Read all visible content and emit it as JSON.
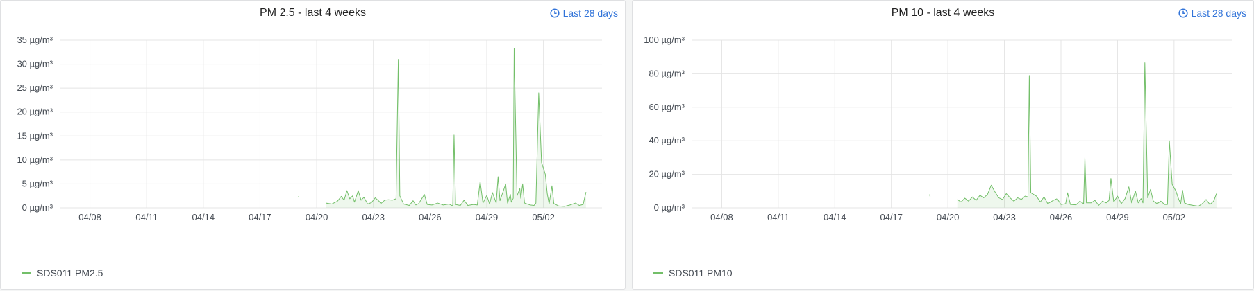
{
  "colors": {
    "series": "#73bf69",
    "fill": "rgba(115,191,105,0.12)",
    "grid": "#e4e4e4",
    "link": "#3274d9"
  },
  "panels": [
    {
      "title": "PM 2.5 - last 4 weeks",
      "time_range": "Last 28 days",
      "legend": "SDS011 PM2.5",
      "clock_icon": "clock-icon",
      "chart_data": {
        "type": "line",
        "title": "PM 2.5 - last 4 weeks",
        "unit": "µg/m³",
        "ylim": [
          0,
          35
        ],
        "yticks": [
          0,
          5,
          10,
          15,
          20,
          25,
          30,
          35
        ],
        "ytick_labels": [
          "0 µg/m³",
          "5 µg/m³",
          "10 µg/m³",
          "15 µg/m³",
          "20 µg/m³",
          "25 µg/m³",
          "30 µg/m³",
          "35 µg/m³"
        ],
        "xlim_days": [
          0,
          28.7
        ],
        "xtick_days": [
          1.6,
          4.6,
          7.6,
          10.6,
          13.6,
          16.6,
          19.6,
          22.6,
          25.6
        ],
        "xtick_labels": [
          "04/08",
          "04/11",
          "04/14",
          "04/17",
          "04/20",
          "04/23",
          "04/26",
          "04/29",
          "05/02"
        ],
        "series": [
          {
            "name": "SDS011 PM2.5",
            "segments": [
              [
                [
                  12.63,
                  2.4
                ],
                [
                  12.66,
                  2.2
                ]
              ],
              [
                [
                  14.1,
                  1.0
                ],
                [
                  14.4,
                  0.8
                ],
                [
                  14.7,
                  1.4
                ],
                [
                  14.9,
                  2.4
                ],
                [
                  15.05,
                  1.6
                ],
                [
                  15.2,
                  3.6
                ],
                [
                  15.35,
                  1.9
                ],
                [
                  15.5,
                  2.5
                ],
                [
                  15.6,
                  1.2
                ],
                [
                  15.8,
                  3.6
                ],
                [
                  15.95,
                  1.6
                ],
                [
                  16.1,
                  2.2
                ],
                [
                  16.3,
                  0.8
                ],
                [
                  16.5,
                  1.1
                ],
                [
                  16.7,
                  2.1
                ],
                [
                  16.9,
                  1.4
                ],
                [
                  17.0,
                  0.9
                ],
                [
                  17.2,
                  1.6
                ],
                [
                  17.4,
                  1.7
                ],
                [
                  17.6,
                  1.6
                ],
                [
                  17.8,
                  1.9
                ],
                [
                  17.92,
                  31.0
                ],
                [
                  18.0,
                  2.5
                ],
                [
                  18.2,
                  0.8
                ],
                [
                  18.5,
                  0.5
                ],
                [
                  18.7,
                  1.5
                ],
                [
                  18.85,
                  0.6
                ],
                [
                  19.0,
                  0.9
                ],
                [
                  19.3,
                  2.8
                ],
                [
                  19.45,
                  0.7
                ],
                [
                  19.7,
                  0.6
                ],
                [
                  20.0,
                  1.0
                ],
                [
                  20.3,
                  0.6
                ],
                [
                  20.6,
                  0.8
                ],
                [
                  20.8,
                  0.4
                ],
                [
                  20.87,
                  15.2
                ],
                [
                  20.95,
                  0.7
                ],
                [
                  21.2,
                  0.5
                ],
                [
                  21.4,
                  1.6
                ],
                [
                  21.6,
                  0.5
                ],
                [
                  21.9,
                  0.7
                ],
                [
                  22.1,
                  0.6
                ],
                [
                  22.25,
                  5.5
                ],
                [
                  22.4,
                  1.0
                ],
                [
                  22.6,
                  2.6
                ],
                [
                  22.75,
                  0.8
                ],
                [
                  22.9,
                  3.2
                ],
                [
                  23.1,
                  1.0
                ],
                [
                  23.2,
                  6.5
                ],
                [
                  23.3,
                  1.5
                ],
                [
                  23.5,
                  3.8
                ],
                [
                  23.6,
                  5.0
                ],
                [
                  23.7,
                  1.0
                ],
                [
                  23.85,
                  2.8
                ],
                [
                  23.9,
                  1.2
                ],
                [
                  24.0,
                  2.0
                ],
                [
                  24.05,
                  33.3
                ],
                [
                  24.2,
                  2.5
                ],
                [
                  24.35,
                  4.0
                ],
                [
                  24.4,
                  2.0
                ],
                [
                  24.5,
                  5.0
                ],
                [
                  24.6,
                  1.0
                ],
                [
                  24.75,
                  0.8
                ],
                [
                  24.9,
                  0.6
                ],
                [
                  25.1,
                  0.5
                ],
                [
                  25.2,
                  1.0
                ],
                [
                  25.35,
                  24.0
                ],
                [
                  25.5,
                  9.5
                ],
                [
                  25.7,
                  7.0
                ],
                [
                  25.8,
                  3.0
                ],
                [
                  25.9,
                  0.8
                ],
                [
                  26.05,
                  4.6
                ],
                [
                  26.15,
                  0.9
                ],
                [
                  26.4,
                  0.4
                ],
                [
                  26.7,
                  0.3
                ],
                [
                  27.0,
                  0.6
                ],
                [
                  27.3,
                  1.0
                ],
                [
                  27.5,
                  0.5
                ],
                [
                  27.7,
                  0.7
                ],
                [
                  27.85,
                  3.3
                ]
              ]
            ]
          }
        ]
      }
    },
    {
      "title": "PM 10 - last 4 weeks",
      "time_range": "Last 28 days",
      "legend": "SDS011 PM10",
      "clock_icon": "clock-icon",
      "chart_data": {
        "type": "line",
        "title": "PM 10 - last 4 weeks",
        "unit": "µg/m³",
        "ylim": [
          0,
          100
        ],
        "yticks": [
          0,
          20,
          40,
          60,
          80,
          100
        ],
        "ytick_labels": [
          "0 µg/m³",
          "20 µg/m³",
          "40 µg/m³",
          "60 µg/m³",
          "80 µg/m³",
          "100 µg/m³"
        ],
        "xlim_days": [
          0,
          28.7
        ],
        "xtick_days": [
          1.6,
          4.6,
          7.6,
          10.6,
          13.6,
          16.6,
          19.6,
          22.6,
          25.6
        ],
        "xtick_labels": [
          "04/08",
          "04/11",
          "04/14",
          "04/17",
          "04/20",
          "04/23",
          "04/26",
          "04/29",
          "05/02"
        ],
        "series": [
          {
            "name": "SDS011 PM10",
            "segments": [
              [
                [
                  12.63,
                  8.0
                ],
                [
                  12.66,
                  6.5
                ]
              ],
              [
                [
                  14.1,
                  5.0
                ],
                [
                  14.3,
                  3.5
                ],
                [
                  14.5,
                  5.8
                ],
                [
                  14.7,
                  4.0
                ],
                [
                  14.9,
                  6.5
                ],
                [
                  15.1,
                  4.5
                ],
                [
                  15.3,
                  7.5
                ],
                [
                  15.5,
                  6.0
                ],
                [
                  15.7,
                  8.0
                ],
                [
                  15.9,
                  13.5
                ],
                [
                  16.1,
                  9.5
                ],
                [
                  16.3,
                  6.0
                ],
                [
                  16.5,
                  5.0
                ],
                [
                  16.7,
                  8.5
                ],
                [
                  16.9,
                  6.0
                ],
                [
                  17.1,
                  4.0
                ],
                [
                  17.3,
                  6.0
                ],
                [
                  17.5,
                  5.0
                ],
                [
                  17.7,
                  7.0
                ],
                [
                  17.85,
                  6.5
                ],
                [
                  17.92,
                  79.0
                ],
                [
                  18.0,
                  9.0
                ],
                [
                  18.3,
                  7.0
                ],
                [
                  18.5,
                  3.5
                ],
                [
                  18.7,
                  6.5
                ],
                [
                  18.9,
                  2.5
                ],
                [
                  19.2,
                  4.5
                ],
                [
                  19.4,
                  5.5
                ],
                [
                  19.6,
                  2.0
                ],
                [
                  19.85,
                  2.5
                ],
                [
                  19.95,
                  9.0
                ],
                [
                  20.1,
                  2.0
                ],
                [
                  20.4,
                  1.8
                ],
                [
                  20.6,
                  4.0
                ],
                [
                  20.8,
                  2.5
                ],
                [
                  20.87,
                  30.0
                ],
                [
                  20.95,
                  3.0
                ],
                [
                  21.2,
                  3.0
                ],
                [
                  21.4,
                  4.5
                ],
                [
                  21.6,
                  1.5
                ],
                [
                  21.8,
                  4.0
                ],
                [
                  22.0,
                  3.0
                ],
                [
                  22.15,
                  4.5
                ],
                [
                  22.25,
                  17.5
                ],
                [
                  22.4,
                  3.5
                ],
                [
                  22.6,
                  7.0
                ],
                [
                  22.8,
                  2.5
                ],
                [
                  23.0,
                  5.5
                ],
                [
                  23.2,
                  12.5
                ],
                [
                  23.35,
                  3.0
                ],
                [
                  23.55,
                  10.0
                ],
                [
                  23.7,
                  3.0
                ],
                [
                  23.85,
                  5.5
                ],
                [
                  23.95,
                  3.0
                ],
                [
                  24.05,
                  86.5
                ],
                [
                  24.2,
                  6.0
                ],
                [
                  24.35,
                  11.0
                ],
                [
                  24.5,
                  4.0
                ],
                [
                  24.7,
                  2.5
                ],
                [
                  24.9,
                  4.0
                ],
                [
                  25.1,
                  2.0
                ],
                [
                  25.25,
                  2.0
                ],
                [
                  25.35,
                  40.0
                ],
                [
                  25.5,
                  14.0
                ],
                [
                  25.7,
                  10.0
                ],
                [
                  25.85,
                  5.0
                ],
                [
                  25.95,
                  2.5
                ],
                [
                  26.05,
                  10.5
                ],
                [
                  26.15,
                  3.0
                ],
                [
                  26.35,
                  2.0
                ],
                [
                  26.6,
                  1.5
                ],
                [
                  26.9,
                  1.0
                ],
                [
                  27.1,
                  2.5
                ],
                [
                  27.3,
                  5.0
                ],
                [
                  27.5,
                  2.0
                ],
                [
                  27.7,
                  4.0
                ],
                [
                  27.85,
                  8.5
                ]
              ]
            ]
          }
        ]
      }
    }
  ]
}
